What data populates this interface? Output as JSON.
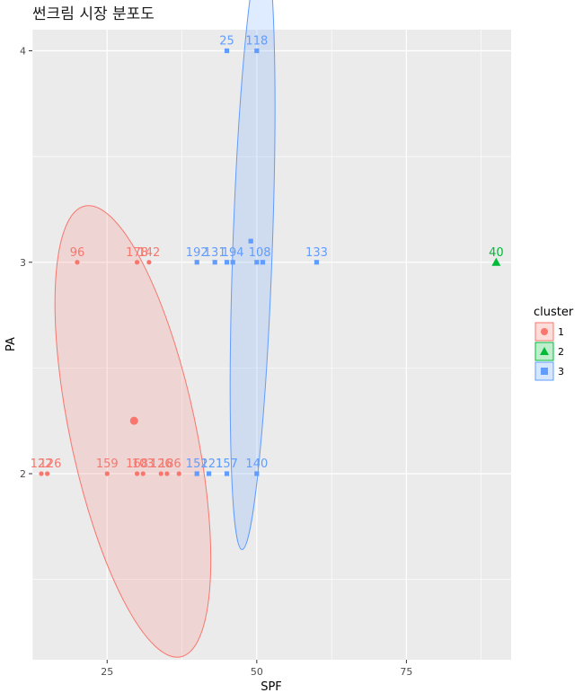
{
  "colors": {
    "cluster1": "#F8766D",
    "cluster2": "#00BA38",
    "cluster3": "#619CFF",
    "panel": "#EBEBEB",
    "grid": "#FFFFFF"
  },
  "chart_data": {
    "type": "scatter",
    "title": "썬크림 시장 분포도",
    "xlabel": "SPF",
    "ylabel": "PA",
    "xlim": [
      12.5,
      92.5
    ],
    "ylim": [
      1.12,
      4.1
    ],
    "xticks": [
      25,
      50,
      75
    ],
    "yticks": [
      2,
      3,
      4
    ],
    "grid": true,
    "legend": {
      "title": "cluster",
      "position": "right",
      "entries": [
        {
          "name": "1",
          "shape": "circle",
          "color_key": "cluster1"
        },
        {
          "name": "2",
          "shape": "triangle",
          "color_key": "cluster2"
        },
        {
          "name": "3",
          "shape": "square",
          "color_key": "cluster3"
        }
      ]
    },
    "points": [
      {
        "x": 14,
        "y": 2,
        "cluster": 1
      },
      {
        "x": 15,
        "y": 2,
        "cluster": 1
      },
      {
        "x": 25,
        "y": 2,
        "cluster": 1
      },
      {
        "x": 30,
        "y": 2,
        "cluster": 1
      },
      {
        "x": 31,
        "y": 2,
        "cluster": 1
      },
      {
        "x": 34,
        "y": 2,
        "cluster": 1
      },
      {
        "x": 35,
        "y": 2,
        "cluster": 1
      },
      {
        "x": 37,
        "y": 2,
        "cluster": 1
      },
      {
        "x": 20,
        "y": 3,
        "cluster": 1
      },
      {
        "x": 30,
        "y": 3,
        "cluster": 1
      },
      {
        "x": 32,
        "y": 3,
        "cluster": 1
      },
      {
        "x": 90,
        "y": 3,
        "cluster": 2
      },
      {
        "x": 40,
        "y": 2,
        "cluster": 3
      },
      {
        "x": 42,
        "y": 2,
        "cluster": 3
      },
      {
        "x": 45,
        "y": 2,
        "cluster": 3
      },
      {
        "x": 50,
        "y": 2,
        "cluster": 3
      },
      {
        "x": 40,
        "y": 3,
        "cluster": 3
      },
      {
        "x": 43,
        "y": 3,
        "cluster": 3
      },
      {
        "x": 45,
        "y": 3,
        "cluster": 3
      },
      {
        "x": 46,
        "y": 3,
        "cluster": 3
      },
      {
        "x": 49,
        "y": 3.1,
        "cluster": 3
      },
      {
        "x": 50,
        "y": 3,
        "cluster": 3
      },
      {
        "x": 51,
        "y": 3,
        "cluster": 3
      },
      {
        "x": 60,
        "y": 3,
        "cluster": 3
      },
      {
        "x": 45,
        "y": 4,
        "cluster": 3
      },
      {
        "x": 50,
        "y": 4,
        "cluster": 3
      }
    ],
    "labels": [
      {
        "text": "122",
        "x": 14,
        "y": 2,
        "cluster": 1
      },
      {
        "text": "126",
        "x": 15.5,
        "y": 2,
        "cluster": 1
      },
      {
        "text": "159",
        "x": 25,
        "y": 2,
        "cluster": 1
      },
      {
        "text": "168",
        "x": 30,
        "y": 2,
        "cluster": 1
      },
      {
        "text": "103",
        "x": 31,
        "y": 2,
        "cluster": 1
      },
      {
        "text": "126",
        "x": 34,
        "y": 2,
        "cluster": 1
      },
      {
        "text": "186",
        "x": 35.5,
        "y": 2,
        "cluster": 1
      },
      {
        "text": "96",
        "x": 20,
        "y": 3,
        "cluster": 1
      },
      {
        "text": "178",
        "x": 30,
        "y": 3,
        "cluster": 1
      },
      {
        "text": "142",
        "x": 32,
        "y": 3,
        "cluster": 1
      },
      {
        "text": "40",
        "x": 90,
        "y": 3,
        "cluster": 2
      },
      {
        "text": "152",
        "x": 40,
        "y": 2,
        "cluster": 3
      },
      {
        "text": "121",
        "x": 42.5,
        "y": 2,
        "cluster": 3
      },
      {
        "text": "157",
        "x": 45,
        "y": 2,
        "cluster": 3
      },
      {
        "text": "140",
        "x": 50,
        "y": 2,
        "cluster": 3
      },
      {
        "text": "192",
        "x": 40,
        "y": 3,
        "cluster": 3
      },
      {
        "text": "131",
        "x": 43,
        "y": 3,
        "cluster": 3
      },
      {
        "text": "194",
        "x": 46,
        "y": 3,
        "cluster": 3
      },
      {
        "text": "108",
        "x": 50.5,
        "y": 3,
        "cluster": 3
      },
      {
        "text": "133",
        "x": 60,
        "y": 3,
        "cluster": 3
      },
      {
        "text": "25",
        "x": 45,
        "y": 4,
        "cluster": 3
      },
      {
        "text": "118",
        "x": 50,
        "y": 4,
        "cluster": 3
      }
    ],
    "centroids": [
      {
        "x": 29.5,
        "y": 2.25,
        "cluster": 1
      }
    ],
    "ellipses": [
      {
        "cluster": 1,
        "cx": 29.3,
        "cy": 2.2,
        "rx": 10.5,
        "ry": 1.09,
        "angle_deg": -12
      },
      {
        "cluster": 3,
        "cx": 49.3,
        "cy": 3.07,
        "rx": 3.3,
        "ry": 1.43,
        "angle_deg": 2
      }
    ]
  }
}
